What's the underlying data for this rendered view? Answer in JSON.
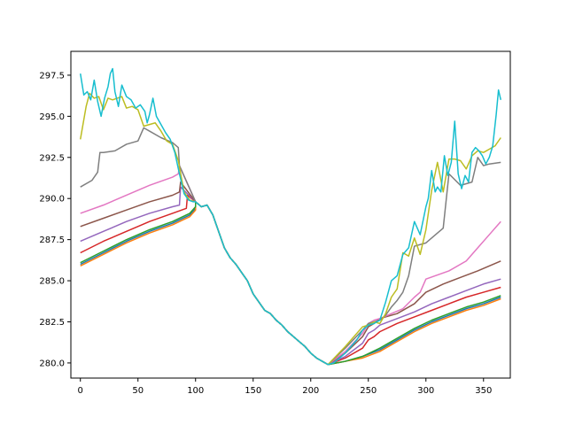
{
  "chart_data": {
    "type": "line",
    "title": "",
    "xlabel": "",
    "ylabel": "",
    "xlim": [
      -8.25,
      373.25
    ],
    "ylim": [
      279.08,
      298.95
    ],
    "xticks": [
      0,
      50,
      100,
      150,
      200,
      250,
      300,
      350
    ],
    "yticks": [
      280.0,
      282.5,
      285.0,
      287.5,
      290.0,
      292.5,
      295.0,
      297.5
    ],
    "xtick_labels": [
      "0",
      "50",
      "100",
      "150",
      "200",
      "250",
      "300",
      "350"
    ],
    "ytick_labels": [
      "280.0",
      "282.5",
      "285.0",
      "287.5",
      "290.0",
      "292.5",
      "295.0",
      "297.5"
    ],
    "grid": false,
    "legend": "none",
    "shared": {
      "x": [
        100,
        105,
        110,
        115,
        120,
        125,
        130,
        135,
        140,
        145,
        150,
        155,
        160,
        165,
        170,
        175,
        180,
        185,
        190,
        195,
        200,
        205,
        210,
        215
      ],
      "y": [
        289.8,
        289.5,
        289.6,
        289.0,
        288.0,
        287.0,
        286.4,
        286.0,
        285.5,
        285.0,
        284.2,
        283.7,
        283.2,
        283.0,
        282.6,
        282.3,
        281.9,
        281.6,
        281.3,
        281.0,
        280.6,
        280.3,
        280.1,
        279.9
      ]
    },
    "series": [
      {
        "color": "#1f77b4",
        "x": [
          0,
          20,
          40,
          60,
          80,
          95,
          100
        ],
        "y": [
          286.0,
          286.7,
          287.4,
          288.0,
          288.5,
          289.0,
          289.4
        ],
        "tail_x": [
          215,
          230,
          245,
          260,
          275,
          290,
          305,
          320,
          335,
          350,
          365
        ],
        "tail_y": [
          279.9,
          280.1,
          280.4,
          280.8,
          281.4,
          282.0,
          282.5,
          282.9,
          283.3,
          283.6,
          284.0
        ]
      },
      {
        "color": "#ff7f0e",
        "x": [
          0,
          20,
          40,
          60,
          80,
          95,
          100
        ],
        "y": [
          285.9,
          286.6,
          287.3,
          287.9,
          288.4,
          288.9,
          289.3
        ],
        "tail_x": [
          215,
          230,
          245,
          260,
          275,
          290,
          305,
          320,
          335,
          350,
          365
        ],
        "tail_y": [
          279.9,
          280.1,
          280.3,
          280.7,
          281.3,
          281.9,
          282.4,
          282.8,
          283.2,
          283.5,
          283.9
        ]
      },
      {
        "color": "#2ca02c",
        "x": [
          0,
          20,
          40,
          60,
          80,
          95,
          100
        ],
        "y": [
          286.1,
          286.8,
          287.5,
          288.1,
          288.6,
          289.1,
          289.5
        ],
        "tail_x": [
          215,
          230,
          245,
          260,
          275,
          290,
          305,
          320,
          335,
          350,
          365
        ],
        "tail_y": [
          279.9,
          280.1,
          280.4,
          280.9,
          281.5,
          282.1,
          282.6,
          283.0,
          283.4,
          283.7,
          284.1
        ]
      },
      {
        "color": "#d62728",
        "x": [
          0,
          20,
          40,
          60,
          80,
          92,
          93,
          100
        ],
        "y": [
          286.7,
          287.4,
          288.0,
          288.6,
          289.1,
          289.4,
          290.2,
          289.8
        ],
        "tail_x": [
          215,
          230,
          245,
          250,
          255,
          260,
          275,
          290,
          305,
          320,
          335,
          350,
          365
        ],
        "tail_y": [
          279.9,
          280.3,
          280.9,
          281.4,
          281.6,
          281.9,
          282.4,
          282.8,
          283.2,
          283.6,
          284.0,
          284.3,
          284.6
        ]
      },
      {
        "color": "#9467bd",
        "x": [
          0,
          20,
          40,
          60,
          80,
          86,
          87,
          100
        ],
        "y": [
          287.4,
          288.0,
          288.6,
          289.1,
          289.5,
          289.6,
          290.7,
          289.8
        ],
        "tail_x": [
          215,
          230,
          245,
          250,
          255,
          260,
          275,
          290,
          305,
          320,
          335,
          350,
          365
        ],
        "tail_y": [
          279.9,
          280.4,
          281.2,
          281.8,
          282.0,
          282.3,
          282.7,
          283.1,
          283.6,
          284.0,
          284.4,
          284.8,
          285.1
        ]
      },
      {
        "color": "#8c564b",
        "x": [
          0,
          20,
          40,
          60,
          80,
          86,
          87,
          100
        ],
        "y": [
          288.3,
          288.8,
          289.3,
          289.8,
          290.2,
          290.4,
          291.0,
          289.8
        ],
        "tail_x": [
          215,
          230,
          245,
          250,
          255,
          260,
          275,
          290,
          300,
          315,
          330,
          345,
          365
        ],
        "tail_y": [
          279.9,
          280.6,
          281.6,
          282.2,
          282.4,
          282.7,
          283.0,
          283.6,
          284.3,
          284.8,
          285.2,
          285.6,
          286.2
        ]
      },
      {
        "color": "#e377c2",
        "x": [
          0,
          20,
          40,
          60,
          80,
          85,
          86,
          100
        ],
        "y": [
          289.1,
          289.6,
          290.2,
          290.8,
          291.3,
          291.5,
          292.0,
          289.8
        ],
        "tail_x": [
          215,
          230,
          245,
          250,
          255,
          260,
          270,
          280,
          290,
          295,
          300,
          320,
          335,
          345,
          355,
          365
        ],
        "tail_y": [
          279.9,
          280.7,
          281.8,
          282.4,
          282.6,
          282.7,
          283.0,
          283.3,
          284.0,
          284.3,
          285.1,
          285.6,
          286.2,
          287.0,
          287.8,
          288.6
        ]
      },
      {
        "color": "#7f7f7f",
        "x": [
          0,
          10,
          15,
          17,
          20,
          30,
          40,
          50,
          55,
          60,
          70,
          80,
          85,
          86,
          100
        ],
        "y": [
          290.7,
          291.1,
          291.6,
          292.8,
          292.8,
          292.9,
          293.3,
          293.5,
          294.3,
          294.1,
          293.7,
          293.4,
          293.1,
          292.0,
          289.8
        ],
        "tail_x": [
          215,
          230,
          245,
          250,
          255,
          260,
          265,
          270,
          275,
          280,
          285,
          290,
          300,
          310,
          315,
          320,
          330,
          335,
          340,
          345,
          350,
          355,
          365
        ],
        "tail_y": [
          279.9,
          280.9,
          282.0,
          282.4,
          282.5,
          282.6,
          282.9,
          283.4,
          283.8,
          284.3,
          285.3,
          287.1,
          287.3,
          287.9,
          288.2,
          291.5,
          290.8,
          290.9,
          291.0,
          292.5,
          292.0,
          292.1,
          292.2
        ]
      },
      {
        "color": "#bcbd22",
        "x": [
          0,
          5,
          8,
          12,
          16,
          20,
          24,
          28,
          32,
          36,
          40,
          45,
          50,
          55,
          60,
          65,
          70,
          75,
          80,
          85,
          90,
          95,
          100
        ],
        "y": [
          293.6,
          295.6,
          296.4,
          296.1,
          296.2,
          295.4,
          296.1,
          296.0,
          296.1,
          296.2,
          295.5,
          295.6,
          295.4,
          294.4,
          294.5,
          294.6,
          294.1,
          293.5,
          293.3,
          292.3,
          290.4,
          289.9,
          289.8
        ],
        "tail_x": [
          215,
          230,
          245,
          250,
          255,
          260,
          265,
          270,
          275,
          280,
          285,
          290,
          295,
          300,
          305,
          310,
          315,
          320,
          325,
          330,
          335,
          340,
          345,
          350,
          355,
          360,
          365
        ],
        "tail_y": [
          279.9,
          281.0,
          282.2,
          282.3,
          282.5,
          282.4,
          283.0,
          284.0,
          284.5,
          286.7,
          286.5,
          287.6,
          286.6,
          288.1,
          290.5,
          292.2,
          290.4,
          292.4,
          292.4,
          292.3,
          291.8,
          292.6,
          292.9,
          292.8,
          293.0,
          293.2,
          293.7
        ]
      },
      {
        "color": "#17becf",
        "x": [
          0,
          3,
          6,
          9,
          12,
          15,
          18,
          21,
          24,
          26,
          28,
          30,
          33,
          36,
          40,
          44,
          48,
          52,
          56,
          58,
          60,
          63,
          66,
          70,
          74,
          78,
          82,
          86,
          90,
          94,
          98,
          100
        ],
        "y": [
          297.6,
          296.3,
          296.5,
          296.0,
          297.2,
          295.9,
          295.0,
          296.1,
          296.8,
          297.6,
          297.9,
          296.5,
          295.6,
          296.9,
          296.2,
          296.0,
          295.5,
          295.7,
          295.3,
          294.6,
          295.1,
          296.1,
          295.0,
          294.5,
          294.0,
          293.6,
          292.8,
          291.5,
          290.3,
          289.9,
          289.8,
          289.8
        ],
        "tail_x": [
          215,
          220,
          230,
          240,
          245,
          250,
          255,
          260,
          265,
          270,
          275,
          280,
          285,
          290,
          295,
          300,
          302,
          305,
          308,
          310,
          313,
          316,
          319,
          322,
          325,
          328,
          331,
          334,
          337,
          340,
          343,
          346,
          349,
          352,
          355,
          358,
          361,
          363,
          365
        ],
        "tail_y": [
          279.9,
          280.0,
          280.6,
          281.4,
          282.0,
          282.3,
          282.4,
          282.6,
          283.7,
          285.0,
          285.3,
          286.6,
          287.0,
          288.6,
          287.8,
          289.5,
          290.0,
          291.7,
          290.4,
          290.7,
          290.4,
          292.6,
          291.4,
          292.2,
          294.7,
          291.5,
          290.6,
          291.4,
          291.0,
          292.8,
          293.1,
          292.9,
          292.6,
          292.1,
          292.5,
          293.2,
          295.1,
          296.6,
          296.0
        ]
      }
    ]
  }
}
